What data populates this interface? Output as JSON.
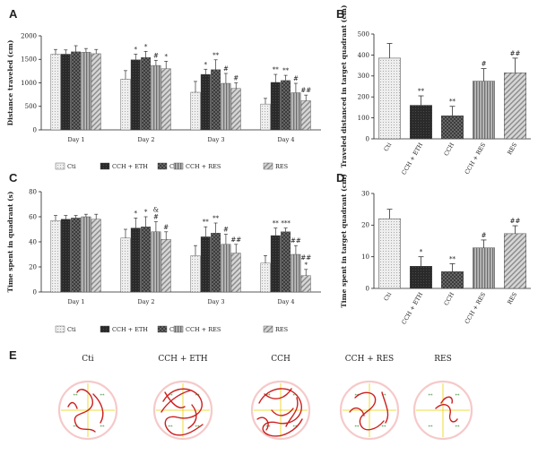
{
  "panel_letters": [
    "A",
    "B",
    "C",
    "D",
    "E"
  ],
  "colors": {
    "Cti": "#e8e8e8",
    "CCH + ETH": "#2f2f2f",
    "CCH": "#3a3a3a",
    "CCH + RES": "#9a9a9a",
    "RES": "#c4c4c4",
    "path": "#cc1f1f",
    "pool": "#f6c9c9",
    "quadrant": "#e8d200"
  },
  "chart_data": [
    {
      "panel": "A",
      "type": "bar",
      "ylabel": "Distance traveled (cm)",
      "ylim": [
        0,
        2000
      ],
      "yticks": [
        "0",
        "500",
        "1000",
        "1500",
        "2000"
      ],
      "categories": [
        "Day 1",
        "Day 2",
        "Day 3",
        "Day 4"
      ],
      "series": [
        {
          "name": "Cti",
          "values": [
            1610,
            1080,
            800,
            550
          ],
          "errors": [
            100,
            180,
            230,
            120
          ],
          "annotations": [
            "",
            "",
            "",
            ""
          ]
        },
        {
          "name": "CCH + ETH",
          "values": [
            1610,
            1490,
            1180,
            1010
          ],
          "errors": [
            90,
            120,
            110,
            170
          ],
          "annotations": [
            "",
            "*",
            "*",
            "**"
          ]
        },
        {
          "name": "CCH",
          "values": [
            1660,
            1540,
            1280,
            1050
          ],
          "errors": [
            130,
            130,
            210,
            110
          ],
          "annotations": [
            "",
            "*",
            "**",
            "**"
          ]
        },
        {
          "name": "CCH + RES",
          "values": [
            1650,
            1370,
            990,
            790
          ],
          "errors": [
            80,
            110,
            210,
            200
          ],
          "annotations": [
            "",
            "#",
            "#",
            "#"
          ]
        },
        {
          "name": "RES",
          "values": [
            1620,
            1300,
            880,
            620
          ],
          "errors": [
            90,
            160,
            120,
            120
          ],
          "annotations": [
            "",
            "*",
            "#",
            "##"
          ]
        }
      ],
      "legend": [
        "Cti",
        "CCH + ETH",
        "CCH",
        "CCH + RES",
        "RES"
      ]
    },
    {
      "panel": "B",
      "type": "bar",
      "ylabel": "Traveled distanced in target quadrant (cm)",
      "ylim": [
        0,
        500
      ],
      "yticks": [
        "0",
        "100",
        "200",
        "300",
        "400",
        "500"
      ],
      "categories": [
        "Cti",
        "CCH + ETH",
        "CCH",
        "CCH + RES",
        "RES"
      ],
      "values": [
        385,
        160,
        110,
        275,
        315
      ],
      "errors": [
        70,
        45,
        45,
        60,
        70
      ],
      "annotations": [
        "",
        "**",
        "**",
        "#",
        "##"
      ]
    },
    {
      "panel": "C",
      "type": "bar",
      "ylabel": "Time spent in quadrant (s)",
      "ylim": [
        0,
        80
      ],
      "yticks": [
        "0",
        "20",
        "40",
        "60",
        "80"
      ],
      "categories": [
        "Day 1",
        "Day 2",
        "Day 3",
        "Day 4"
      ],
      "series": [
        {
          "name": "Cti",
          "values": [
            57,
            43,
            29,
            23
          ],
          "errors": [
            4,
            7,
            8,
            6
          ],
          "annotations": [
            "",
            "",
            "",
            ""
          ]
        },
        {
          "name": "CCH + ETH",
          "values": [
            58,
            51,
            44,
            45
          ],
          "errors": [
            3,
            8,
            8,
            6
          ],
          "annotations": [
            "",
            "*",
            "**",
            "**"
          ]
        },
        {
          "name": "CCH",
          "values": [
            59,
            52,
            47,
            48
          ],
          "errors": [
            2,
            8,
            8,
            3
          ],
          "annotations": [
            "",
            "*",
            "**",
            "***"
          ]
        },
        {
          "name": "CCH + RES",
          "values": [
            60,
            48,
            38,
            30
          ],
          "errors": [
            2,
            8,
            8,
            7
          ],
          "annotations": [
            "",
            "&\n#",
            "#",
            "##"
          ]
        },
        {
          "name": "RES",
          "values": [
            58,
            42,
            31,
            13
          ],
          "errors": [
            4,
            6,
            7,
            5
          ],
          "annotations": [
            "",
            "#",
            "##",
            "##\n*"
          ]
        }
      ],
      "legend": [
        "Cti",
        "CCH + ETH",
        "CCH",
        "CCH + RES",
        "RES"
      ]
    },
    {
      "panel": "D",
      "type": "bar",
      "ylabel": "Time spent in target quadrant (cm)",
      "ylim": [
        0,
        30
      ],
      "yticks": [
        "0",
        "10",
        "20",
        "30"
      ],
      "categories": [
        "Cti",
        "CCH + ETH",
        "CCH",
        "CCH + RES",
        "RES"
      ],
      "values": [
        22,
        7,
        5.3,
        12.8,
        17.3
      ],
      "errors": [
        3,
        3,
        2.5,
        2.5,
        2.5
      ],
      "annotations": [
        "",
        "*",
        "**",
        "#",
        "##"
      ]
    }
  ],
  "track_panel": {
    "groups": [
      "Cti",
      "CCH + ETH",
      "CCH",
      "CCH + RES",
      "RES"
    ],
    "platform_marker": "**"
  }
}
